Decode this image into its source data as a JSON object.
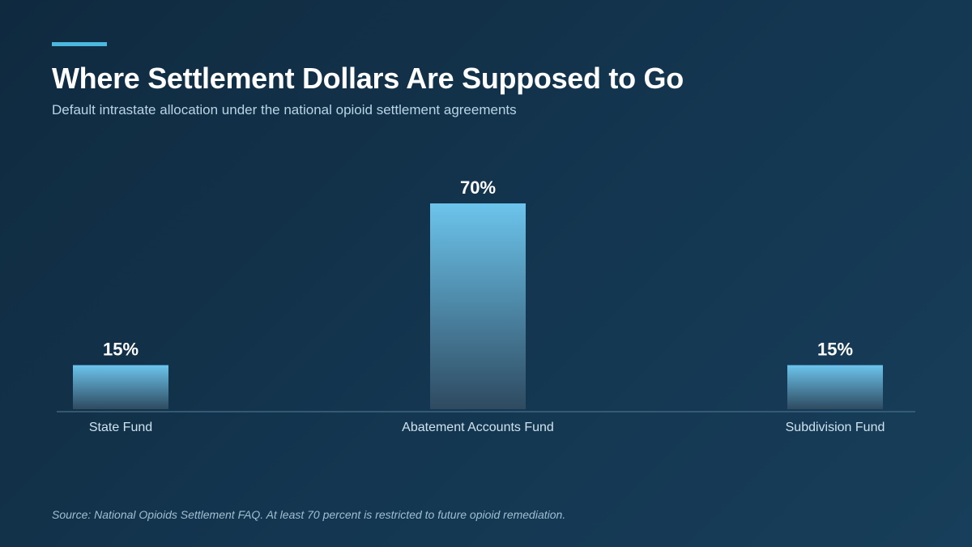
{
  "header": {
    "title": "Where Settlement Dollars Are Supposed to Go",
    "subtitle": "Default intrastate allocation under the national opioid settlement agreements"
  },
  "footer": {
    "source": "Source: National Opioids Settlement FAQ. At least 70 percent is restricted to future opioid remediation."
  },
  "colors": {
    "accent": "#4cb8e0",
    "bar_top": "#6cc4ec",
    "bar_bottom": "#2e4a60",
    "axis": "#3f6680",
    "category_label": "#cfe2ee",
    "value_label": "#ffffff"
  },
  "chart_data": {
    "type": "bar",
    "categories": [
      "State Fund",
      "Abatement Accounts Fund",
      "Subdivision Fund"
    ],
    "values": [
      15,
      70,
      15
    ],
    "value_labels": [
      "15%",
      "70%",
      "15%"
    ],
    "xlabel": "",
    "ylabel": "",
    "ylim": [
      0,
      70
    ],
    "grid": false,
    "legend": "none"
  }
}
